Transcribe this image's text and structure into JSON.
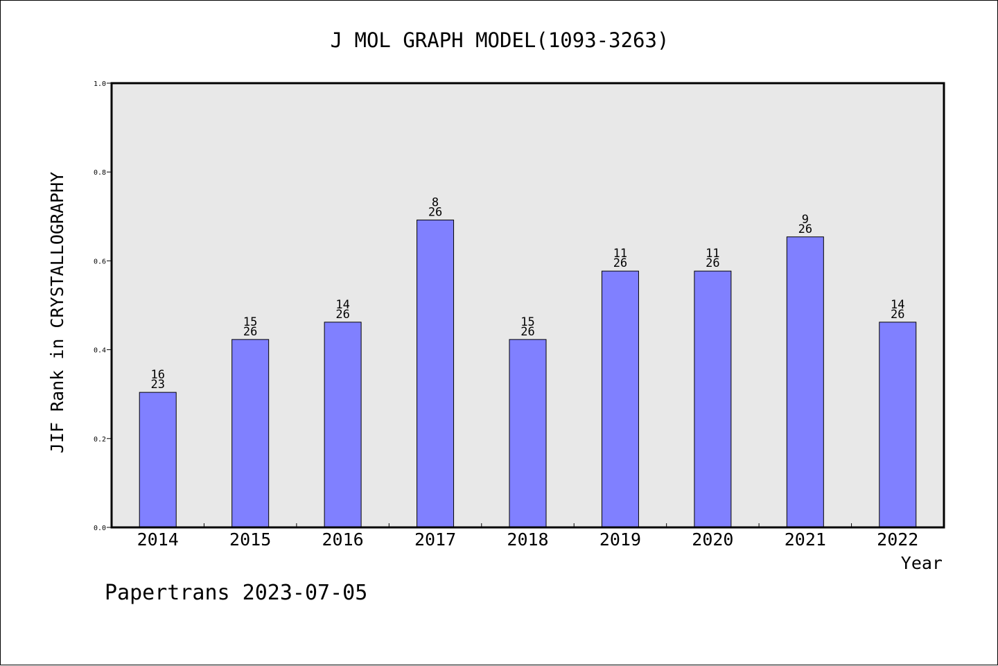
{
  "chart_data": {
    "type": "bar",
    "title": "J MOL GRAPH MODEL(1093-3263)",
    "xlabel": "Year",
    "ylabel": "JIF Rank in CRYSTALLOGRAPHY",
    "ylim": [
      0,
      1.0
    ],
    "yticks": [
      "0.0",
      "0.2",
      "0.4",
      "0.6",
      "0.8",
      "1.0"
    ],
    "grid": false,
    "categories": [
      "2014",
      "2015",
      "2016",
      "2017",
      "2018",
      "2019",
      "2020",
      "2021",
      "2022"
    ],
    "values": [
      0.304,
      0.423,
      0.462,
      0.692,
      0.423,
      0.577,
      0.577,
      0.654,
      0.462
    ],
    "rank": [
      "16",
      "15",
      "14",
      "8",
      "15",
      "11",
      "11",
      "9",
      "14"
    ],
    "total": [
      "23",
      "26",
      "26",
      "26",
      "26",
      "26",
      "26",
      "26",
      "26"
    ],
    "bar_color": "#8080ff",
    "plot_background": "#e8e8e8"
  },
  "footer": "Papertrans 2023-07-05"
}
